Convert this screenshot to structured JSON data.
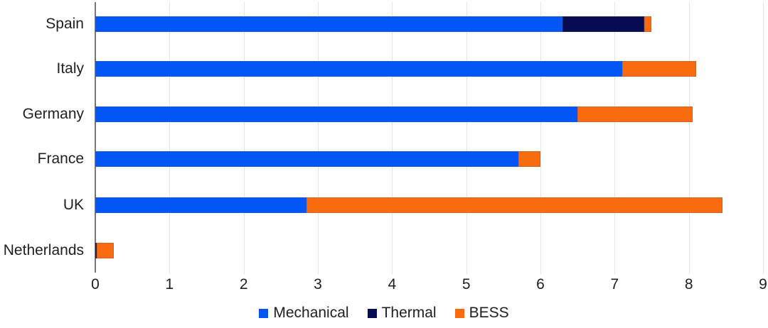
{
  "chart_data": {
    "type": "bar",
    "orientation": "horizontal",
    "stacked": true,
    "title": "",
    "xlabel": "",
    "ylabel": "",
    "categories": [
      "Spain",
      "Italy",
      "Germany",
      "France",
      "UK",
      "Netherlands"
    ],
    "series": [
      {
        "name": "Mechanical",
        "color": "#0356f6",
        "values": [
          6.3,
          7.1,
          6.5,
          5.7,
          2.85,
          0
        ]
      },
      {
        "name": "Thermal",
        "color": "#070b52",
        "values": [
          1.1,
          0,
          0,
          0,
          0,
          0.02
        ]
      },
      {
        "name": "BESS",
        "color": "#fa6a0f",
        "values": [
          0.1,
          1.0,
          1.55,
          0.3,
          5.6,
          0.23
        ]
      }
    ],
    "totals": [
      7.5,
      8.1,
      8.05,
      6.0,
      8.45,
      0.25
    ],
    "xlim": [
      0,
      9
    ],
    "x_ticks": [
      "0",
      "1",
      "2",
      "3",
      "4",
      "5",
      "6",
      "7",
      "8",
      "9"
    ],
    "grid": true,
    "legend_position": "bottom-center",
    "legend": [
      {
        "label": "Mechanical",
        "color": "#0356f6"
      },
      {
        "label": "Thermal",
        "color": "#070b52"
      },
      {
        "label": "BESS",
        "color": "#fa6a0f"
      }
    ]
  },
  "colors": {
    "background": "#ffffff",
    "axis_line": "#7a7a7a",
    "gridline": "#e4e4e4",
    "text": "#1f1f1f"
  }
}
